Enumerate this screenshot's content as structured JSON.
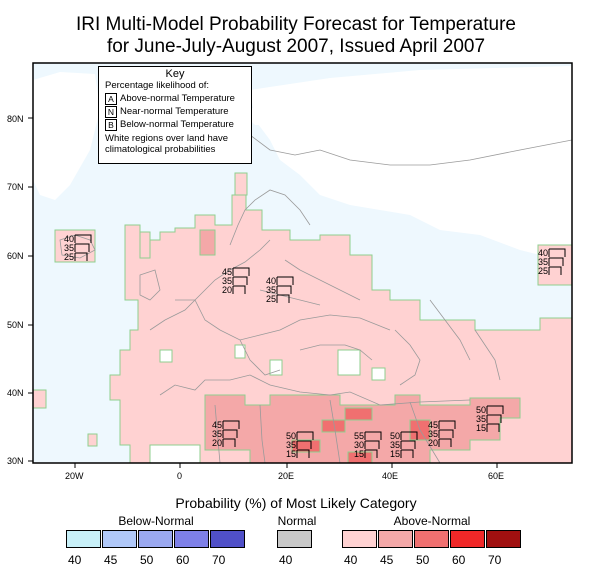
{
  "title": {
    "line1": "IRI Multi-Model Probability Forecast for Temperature",
    "line2": "for June-July-August 2007, Issued April 2007"
  },
  "key": {
    "heading": "Key",
    "subheading": "Percentage likelihood of:",
    "items": [
      {
        "letter": "A",
        "label": "Above-normal Temperature"
      },
      {
        "letter": "N",
        "label": "Near-normal Temperature"
      },
      {
        "letter": "B",
        "label": "Below-normal Temperature"
      }
    ],
    "note_line1": "White regions over land have",
    "note_line2": "climatological probabilities"
  },
  "axes": {
    "lat_labels": [
      "80N",
      "70N",
      "60N",
      "50N",
      "40N",
      "30N"
    ],
    "lon_labels": [
      "20W",
      "0",
      "20E",
      "40E",
      "60E"
    ]
  },
  "stations": [
    {
      "id": "iceland",
      "values": [
        "40",
        "35",
        "25"
      ]
    },
    {
      "id": "norway",
      "values": [
        "45",
        "35",
        "20"
      ]
    },
    {
      "id": "sweden",
      "values": [
        "40",
        "35",
        "25"
      ]
    },
    {
      "id": "urals",
      "values": [
        "40",
        "35",
        "25"
      ]
    },
    {
      "id": "algeria",
      "values": [
        "45",
        "35",
        "20"
      ]
    },
    {
      "id": "libya",
      "values": [
        "50",
        "35",
        "15"
      ]
    },
    {
      "id": "egypt",
      "values": [
        "55",
        "30",
        "15"
      ]
    },
    {
      "id": "arabia",
      "values": [
        "50",
        "35",
        "15"
      ]
    },
    {
      "id": "iraq",
      "values": [
        "45",
        "35",
        "20"
      ]
    },
    {
      "id": "iran",
      "values": [
        "50",
        "35",
        "15"
      ]
    }
  ],
  "legend": {
    "title": "Probability (%) of Most Likely Category",
    "groups": [
      {
        "name": "Below-Normal",
        "colors": [
          "#c8f0f8",
          "#b0c8f8",
          "#9aa8f0",
          "#7e80e8",
          "#5050c8"
        ],
        "labels": [
          "40",
          "45",
          "50",
          "60",
          "70"
        ]
      },
      {
        "name": "Normal",
        "colors": [
          "#c8c8c8"
        ],
        "labels": [
          "40"
        ]
      },
      {
        "name": "Above-Normal",
        "colors": [
          "#ffd2d2",
          "#f4a8a8",
          "#f07070",
          "#f02828",
          "#a01010"
        ],
        "labels": [
          "40",
          "45",
          "50",
          "60",
          "70"
        ]
      }
    ]
  }
}
